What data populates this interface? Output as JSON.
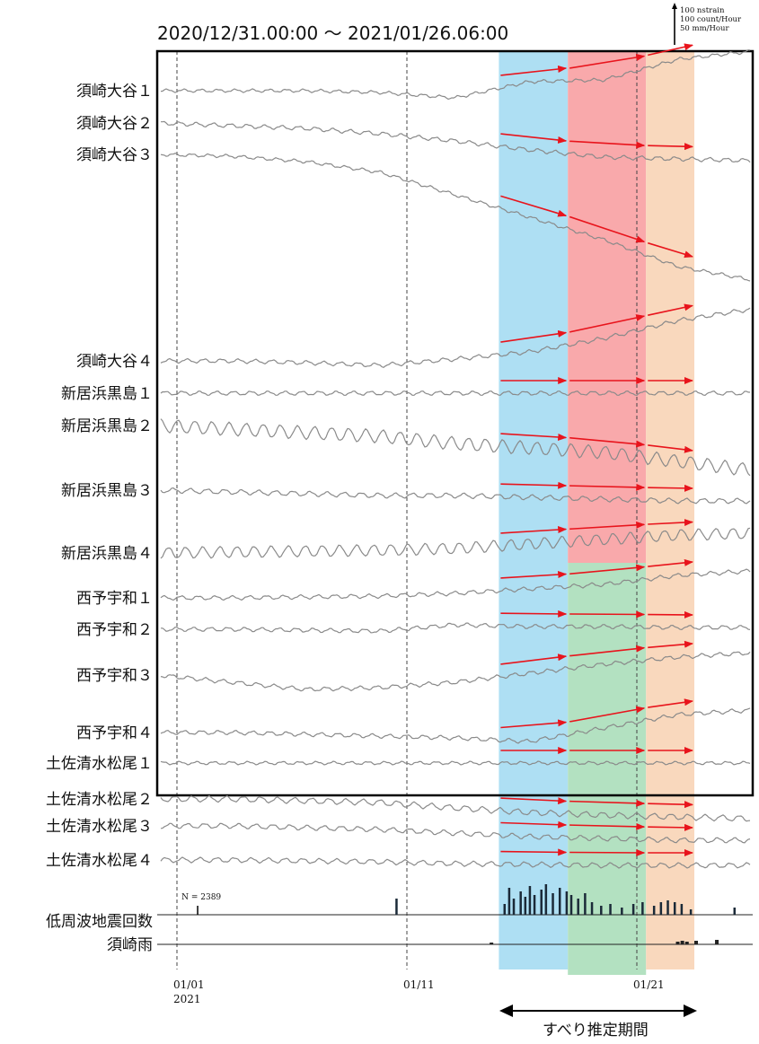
{
  "colors": {
    "band_blue": "#aedff3",
    "band_red": "#f9a9ab",
    "band_green": "#b3e1c1",
    "band_orange": "#f9d8bd",
    "arrow": "#e8141c",
    "trace": "#8a8a8a"
  },
  "chart_data": {
    "type": "line",
    "title": "2020/12/31.00:00 ～ 2021/01/26.06:00",
    "scale_labels": [
      "100 nstrain",
      "100 count/Hour",
      "50 mm/Hour"
    ],
    "x_range": [
      "2020-12-31 00:00",
      "2021-01-26 06:00"
    ],
    "x_ticks": [
      {
        "day": 1,
        "label": "01/01",
        "sublabel": "2021"
      },
      {
        "day": 11,
        "label": "01/11",
        "sublabel": ""
      },
      {
        "day": 21,
        "label": "01/21",
        "sublabel": ""
      }
    ],
    "grid_lines_at_day": [
      1,
      11,
      21
    ],
    "bands": [
      {
        "from_day": 15,
        "to_day": 18,
        "color": "band_blue",
        "rows": "all"
      },
      {
        "from_day": 18,
        "to_day": 21.4,
        "color": "band_red",
        "rows": "upper"
      },
      {
        "from_day": 18,
        "to_day": 21.4,
        "color": "band_green",
        "rows": "lower"
      },
      {
        "from_day": 21.4,
        "to_day": 23.5,
        "color": "band_orange",
        "rows": "all"
      }
    ],
    "period_label": "すべり推定期間",
    "series": [
      {
        "name": "須崎大谷１",
        "drift": [
          0,
          0,
          0,
          2,
          8,
          -10,
          -12,
          -35,
          -44
        ],
        "osc": 1.5
      },
      {
        "name": "須崎大谷２",
        "drift": [
          0,
          3,
          6,
          12,
          20,
          30,
          38,
          40,
          42
        ],
        "osc": 2
      },
      {
        "name": "須崎大谷３",
        "drift": [
          0,
          2,
          8,
          20,
          45,
          70,
          95,
          125,
          140
        ],
        "osc": 1.5
      },
      {
        "name": "須崎大谷４",
        "drift": [
          0,
          0,
          2,
          5,
          -2,
          -10,
          -25,
          -45,
          -58
        ],
        "osc": 2
      },
      {
        "name": "新居浜黒島１",
        "drift": [
          0,
          0,
          0,
          0,
          0,
          0,
          0,
          0,
          0
        ],
        "osc": 2
      },
      {
        "name": "新居浜黒島２",
        "drift": [
          0,
          4,
          8,
          12,
          20,
          25,
          30,
          40,
          50
        ],
        "osc": 7
      },
      {
        "name": "新居浜黒島３",
        "drift": [
          0,
          2,
          4,
          6,
          6,
          8,
          10,
          12,
          12
        ],
        "osc": 2.5
      },
      {
        "name": "新居浜黒島４",
        "drift": [
          0,
          -1,
          -2,
          -3,
          -5,
          -10,
          -15,
          -20,
          -22
        ],
        "osc": 6
      },
      {
        "name": "西予宇和１",
        "drift": [
          0,
          0,
          -1,
          -2,
          -5,
          -10,
          -15,
          -25,
          -30
        ],
        "osc": 2
      },
      {
        "name": "西予宇和２",
        "drift": [
          0,
          0,
          1,
          2,
          -5,
          -3,
          -3,
          -2,
          -2
        ],
        "osc": 2
      },
      {
        "name": "西予宇和３",
        "drift": [
          0,
          8,
          16,
          14,
          8,
          -2,
          -12,
          -20,
          -25
        ],
        "osc": 2
      },
      {
        "name": "西予宇和４",
        "drift": [
          0,
          0,
          2,
          4,
          6,
          10,
          -5,
          -20,
          -25
        ],
        "osc": 2
      },
      {
        "name": "土佐清水松尾１",
        "drift": [
          0,
          0,
          0,
          0,
          0,
          0,
          0,
          0,
          0
        ],
        "osc": 1.5
      },
      {
        "name": "土佐清水松尾２",
        "drift": [
          0,
          0,
          2,
          4,
          10,
          15,
          18,
          20,
          22
        ],
        "osc": 3
      },
      {
        "name": "土佐清水松尾３",
        "drift": [
          0,
          0,
          2,
          4,
          8,
          12,
          14,
          16,
          16
        ],
        "osc": 2.5
      },
      {
        "name": "土佐清水松尾４",
        "drift": [
          0,
          0,
          1,
          2,
          4,
          5,
          6,
          6,
          6
        ],
        "osc": 2.5
      }
    ],
    "lfe_count_label": "低周波地震回数",
    "lfe_total": "N = 2389",
    "lfe_histogram": [
      {
        "day": 10.5,
        "count": 18
      },
      {
        "day": 15.2,
        "count": 12
      },
      {
        "day": 15.4,
        "count": 30
      },
      {
        "day": 15.6,
        "count": 18
      },
      {
        "day": 15.9,
        "count": 26
      },
      {
        "day": 16.1,
        "count": 20
      },
      {
        "day": 16.3,
        "count": 32
      },
      {
        "day": 16.5,
        "count": 22
      },
      {
        "day": 16.8,
        "count": 28
      },
      {
        "day": 17.0,
        "count": 34
      },
      {
        "day": 17.3,
        "count": 24
      },
      {
        "day": 17.6,
        "count": 30
      },
      {
        "day": 17.9,
        "count": 26
      },
      {
        "day": 18.1,
        "count": 22
      },
      {
        "day": 18.4,
        "count": 18
      },
      {
        "day": 18.7,
        "count": 24
      },
      {
        "day": 19.0,
        "count": 14
      },
      {
        "day": 19.4,
        "count": 10
      },
      {
        "day": 19.8,
        "count": 12
      },
      {
        "day": 20.3,
        "count": 8
      },
      {
        "day": 20.8,
        "count": 12
      },
      {
        "day": 21.2,
        "count": 14
      },
      {
        "day": 21.7,
        "count": 10
      },
      {
        "day": 22.0,
        "count": 14
      },
      {
        "day": 22.3,
        "count": 16
      },
      {
        "day": 22.6,
        "count": 14
      },
      {
        "day": 22.9,
        "count": 12
      },
      {
        "day": 23.3,
        "count": 6
      },
      {
        "day": 25.2,
        "count": 8
      }
    ],
    "rain_label": "須崎雨",
    "rain_histogram": [
      {
        "day": 14.6,
        "count": 2
      },
      {
        "day": 22.7,
        "count": 3
      },
      {
        "day": 22.9,
        "count": 4
      },
      {
        "day": 23.1,
        "count": 3
      },
      {
        "day": 23.5,
        "count": 4
      },
      {
        "day": 24.4,
        "count": 5
      }
    ]
  }
}
